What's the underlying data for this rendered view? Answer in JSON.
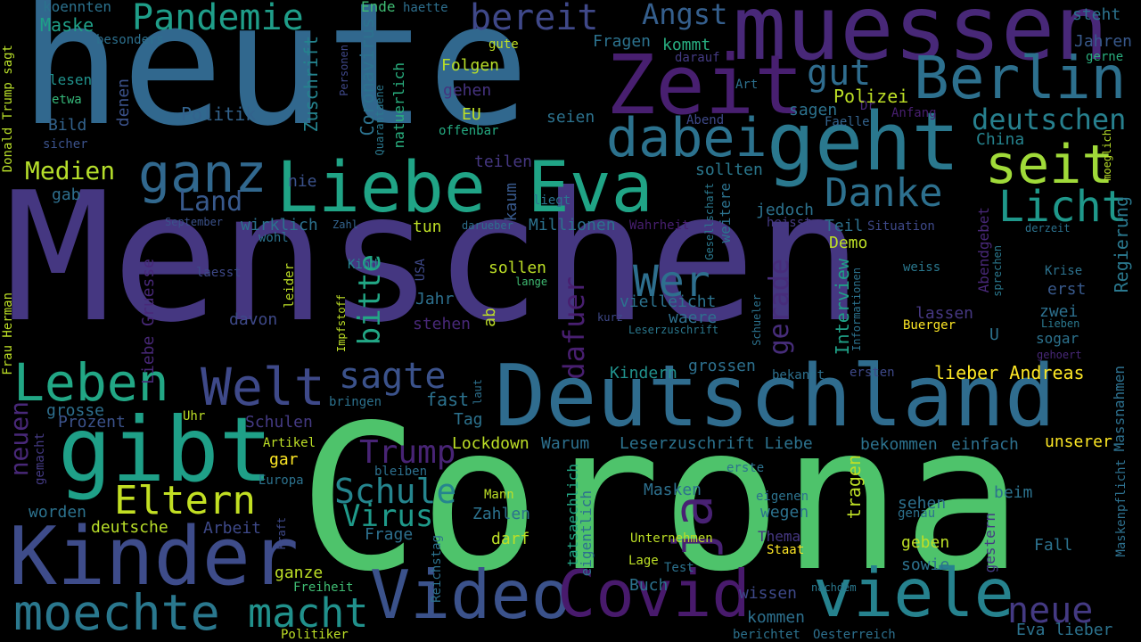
{
  "words": [
    "heute",
    "Menschen",
    "Corona",
    "muessen",
    "Deutschland",
    "Kinder",
    "gibt",
    "Zeit",
    "geht",
    "dabei",
    "Liebe Eva",
    "Berlin",
    "Video",
    "Covid",
    "viele",
    "moechte",
    "macht",
    "ganz",
    "Leben",
    "Welt",
    "seit",
    "Danke",
    "Licht",
    "Pandemie",
    "bereit",
    "Angst",
    "gut",
    "deutschen",
    "Wer",
    "sagte",
    "Schule",
    "Virus",
    "Eltern",
    "Trump",
    "neue",
    "bitte",
    "dafuer",
    "ja",
    "gerade",
    "Medien",
    "Land",
    "Regierung",
    "Interview",
    "Politik",
    "Coronavirus",
    "Zuschrift",
    "Maske",
    "koennten",
    "Ende",
    "haette",
    "steht",
    "Jahren",
    "gerne",
    "besonders",
    "lesen",
    "etwa",
    "Bild",
    "sicher",
    "denen",
    "Donald Trump sagt",
    "Folgen",
    "gehen",
    "EU",
    "seien",
    "offenbar",
    "natuerlich",
    "Quarantaene",
    "Personen",
    "Fragen",
    "kommt",
    "gute",
    "darauf",
    "Art",
    "Dr",
    "Abend",
    "Faelle",
    "Anfang",
    "sagen",
    "Polizei",
    "China",
    "teilen",
    "sollten",
    "moeglich",
    "gab",
    "nie",
    "kaum",
    "liegt",
    "jedoch",
    "heisst",
    "Teil",
    "September",
    "Zahl",
    "Abendgebet",
    "Situation",
    "derzeit",
    "wirklich",
    "wohl",
    "tun",
    "darueber",
    "Millionen",
    "Wahrheit",
    "Gesellschaft",
    "weitere",
    "Demo",
    "laesst",
    "Kind",
    "lange",
    "sollen",
    "weiss",
    "Krise",
    "erst",
    "zwei",
    "lassen",
    "Jahr",
    "vielleicht",
    "waere",
    "kurz",
    "Leserzuschrift",
    "stehen",
    "Frau Herman",
    "Liebe Gruesse",
    "leider",
    "davon",
    "ab",
    "Impfstoff",
    "USA",
    "Schueler",
    "Informationen",
    "sprechen",
    "Lieben",
    "sogar",
    "Buerger",
    "U",
    "gehoert",
    "bekannt",
    "ersten",
    "lieber Andreas",
    "grossen",
    "Kindern",
    "Massnahmen",
    "grosse",
    "Prozent",
    "Uhr",
    "Schulen",
    "bringen",
    "laut",
    "fast",
    "Tag",
    "Lockdown",
    "Warum",
    "Leserzuschrift Liebe",
    "bekommen",
    "einfach",
    "unserer",
    "neuen",
    "Artikel",
    "gemacht",
    "gar",
    "bleiben",
    "erste",
    "tragen",
    "Maskenpflicht",
    "Europa",
    "worden",
    "Masken",
    "Mann",
    "eigenen",
    "beim",
    "deutsche",
    "Arbeit",
    "Kraft",
    "Frage",
    "Zahlen",
    "wegen",
    "sehen",
    "genau",
    "darf",
    "tatsaechlich",
    "eigentlich",
    "Unternehmen",
    "Thema",
    "Staat",
    "geben",
    "Fall",
    "sowie",
    "gestern",
    "Lage",
    "Test",
    "Reichstag",
    "ganze",
    "Buch",
    "nachdem",
    "wissen",
    "Freiheit",
    "kommen",
    "Politiker",
    "berichtet",
    "Oesterreich",
    "Eva lieber"
  ]
}
